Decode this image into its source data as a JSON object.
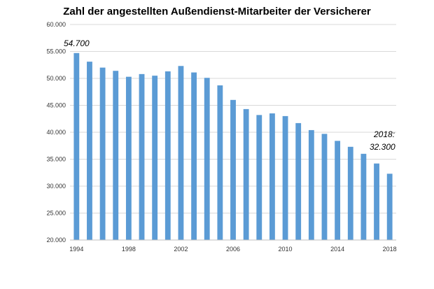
{
  "chart_data": {
    "type": "bar",
    "title": "Zahl der angestellten Außendienst-Mitarbeiter der Versicherer",
    "xlabel": "",
    "ylabel": "",
    "categories": [
      "1994",
      "1995",
      "1996",
      "1997",
      "1998",
      "1999",
      "2000",
      "2001",
      "2002",
      "2003",
      "2004",
      "2005",
      "2006",
      "2007",
      "2008",
      "2009",
      "2010",
      "2011",
      "2012",
      "2013",
      "2014",
      "2015",
      "2016",
      "2017",
      "2018"
    ],
    "values": [
      54700,
      53100,
      52000,
      51400,
      50300,
      50800,
      50500,
      51300,
      52300,
      51100,
      50100,
      48700,
      46000,
      44300,
      43200,
      43500,
      43000,
      41700,
      40400,
      39700,
      38400,
      37300,
      36000,
      34200,
      32300
    ],
    "ylim": [
      20000,
      60000
    ],
    "yticks": [
      20000,
      25000,
      30000,
      35000,
      40000,
      45000,
      50000,
      55000,
      60000
    ],
    "ytick_labels": [
      "20.000",
      "25.000",
      "30.000",
      "35.000",
      "40.000",
      "45.000",
      "50.000",
      "55.000",
      "60.000"
    ],
    "xtick_labels": [
      "1994",
      "1998",
      "2002",
      "2006",
      "2010",
      "2014",
      "2018"
    ],
    "grid": true,
    "bar_color": "#5B9BD5",
    "annotations": [
      {
        "text": "54.700",
        "category": "1994"
      },
      {
        "text": "2018:",
        "category": "2018"
      },
      {
        "text": "32.300",
        "category": "2018"
      }
    ]
  }
}
